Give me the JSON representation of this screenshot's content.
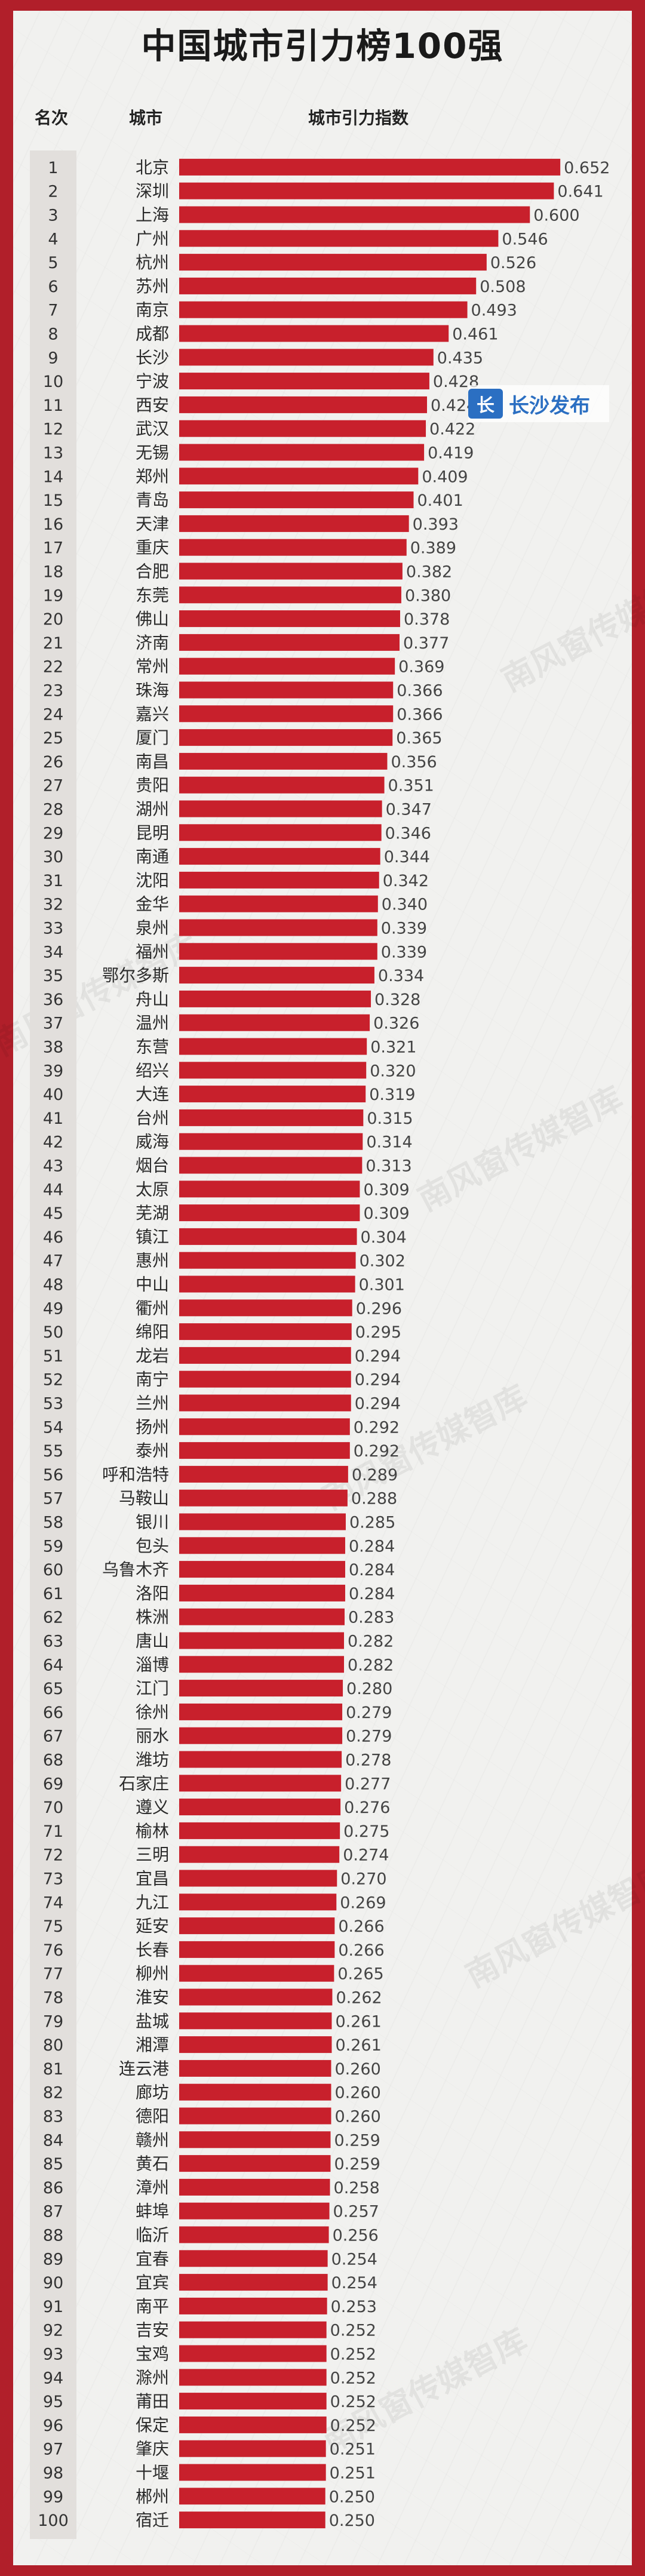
{
  "header": {
    "title": "中国城市引力榜100强",
    "col_rank": "名次",
    "col_city": "城市",
    "col_index": "城市引力指数"
  },
  "logo": {
    "text": "长沙发布",
    "mark": "长"
  },
  "watermark": "南风窗传媒智库",
  "colors": {
    "bar": "#c8202c",
    "frame": "#b11f2a",
    "rank_column": "#e2dfdc"
  },
  "chart_data": {
    "type": "bar",
    "orientation": "horizontal",
    "title": "中国城市引力榜100强",
    "ylabel": "城市",
    "xlabel": "城市引力指数",
    "xlim": [
      0,
      0.66
    ],
    "grid": false,
    "ranks": [
      1,
      2,
      3,
      4,
      5,
      6,
      7,
      8,
      9,
      10,
      11,
      12,
      13,
      14,
      15,
      16,
      17,
      18,
      19,
      20,
      21,
      22,
      23,
      24,
      25,
      26,
      27,
      28,
      29,
      30,
      31,
      32,
      33,
      34,
      35,
      36,
      37,
      38,
      39,
      40,
      41,
      42,
      43,
      44,
      45,
      46,
      47,
      48,
      49,
      50,
      51,
      52,
      53,
      54,
      55,
      56,
      57,
      58,
      59,
      60,
      61,
      62,
      63,
      64,
      65,
      66,
      67,
      68,
      69,
      70,
      71,
      72,
      73,
      74,
      75,
      76,
      77,
      78,
      79,
      80,
      81,
      82,
      83,
      84,
      85,
      86,
      87,
      88,
      89,
      90,
      91,
      92,
      93,
      94,
      95,
      96,
      97,
      98,
      99,
      100
    ],
    "categories": [
      "北京",
      "深圳",
      "上海",
      "广州",
      "杭州",
      "苏州",
      "南京",
      "成都",
      "长沙",
      "宁波",
      "西安",
      "武汉",
      "无锡",
      "郑州",
      "青岛",
      "天津",
      "重庆",
      "合肥",
      "东莞",
      "佛山",
      "济南",
      "常州",
      "珠海",
      "嘉兴",
      "厦门",
      "南昌",
      "贵阳",
      "湖州",
      "昆明",
      "南通",
      "沈阳",
      "金华",
      "泉州",
      "福州",
      "鄂尔多斯",
      "舟山",
      "温州",
      "东营",
      "绍兴",
      "大连",
      "台州",
      "威海",
      "烟台",
      "太原",
      "芜湖",
      "镇江",
      "惠州",
      "中山",
      "衢州",
      "绵阳",
      "龙岩",
      "南宁",
      "兰州",
      "扬州",
      "泰州",
      "呼和浩特",
      "马鞍山",
      "银川",
      "包头",
      "乌鲁木齐",
      "洛阳",
      "株洲",
      "唐山",
      "淄博",
      "江门",
      "徐州",
      "丽水",
      "潍坊",
      "石家庄",
      "遵义",
      "榆林",
      "三明",
      "宜昌",
      "九江",
      "延安",
      "长春",
      "柳州",
      "淮安",
      "盐城",
      "湘潭",
      "连云港",
      "廊坊",
      "德阳",
      "赣州",
      "黄石",
      "漳州",
      "蚌埠",
      "临沂",
      "宜春",
      "宜宾",
      "南平",
      "吉安",
      "宝鸡",
      "滁州",
      "莆田",
      "保定",
      "肇庆",
      "十堰",
      "郴州",
      "宿迁"
    ],
    "values": [
      0.652,
      0.641,
      0.6,
      0.546,
      0.526,
      0.508,
      0.493,
      0.461,
      0.435,
      0.428,
      0.424,
      0.422,
      0.419,
      0.409,
      0.401,
      0.393,
      0.389,
      0.382,
      0.38,
      0.378,
      0.377,
      0.369,
      0.366,
      0.366,
      0.365,
      0.356,
      0.351,
      0.347,
      0.346,
      0.344,
      0.342,
      0.34,
      0.339,
      0.339,
      0.334,
      0.328,
      0.326,
      0.321,
      0.32,
      0.319,
      0.315,
      0.314,
      0.313,
      0.309,
      0.309,
      0.304,
      0.302,
      0.301,
      0.296,
      0.295,
      0.294,
      0.294,
      0.294,
      0.292,
      0.292,
      0.289,
      0.288,
      0.285,
      0.284,
      0.284,
      0.284,
      0.283,
      0.282,
      0.282,
      0.28,
      0.279,
      0.279,
      0.278,
      0.277,
      0.276,
      0.275,
      0.274,
      0.27,
      0.269,
      0.266,
      0.266,
      0.265,
      0.262,
      0.261,
      0.261,
      0.26,
      0.26,
      0.26,
      0.259,
      0.259,
      0.258,
      0.257,
      0.256,
      0.254,
      0.254,
      0.253,
      0.252,
      0.252,
      0.252,
      0.252,
      0.252,
      0.251,
      0.251,
      0.25,
      0.25
    ]
  }
}
